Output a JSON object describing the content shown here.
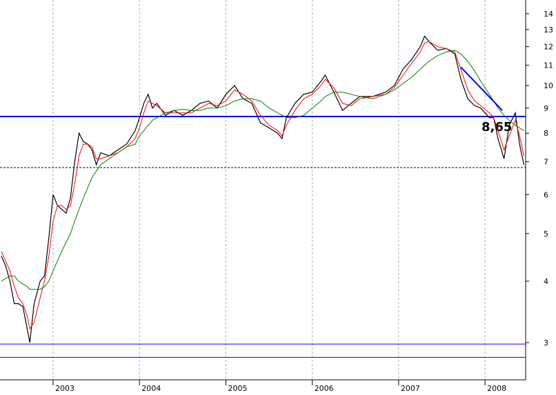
{
  "chart_data": {
    "type": "line",
    "log_scale": true,
    "grid": true,
    "x": [
      2002.4,
      2002.45,
      2002.5,
      2002.55,
      2002.6,
      2002.65,
      2002.7,
      2002.73,
      2002.78,
      2002.85,
      2002.9,
      2002.95,
      2003.0,
      2003.05,
      2003.1,
      2003.15,
      2003.2,
      2003.25,
      2003.3,
      2003.35,
      2003.4,
      2003.45,
      2003.5,
      2003.55,
      2003.65,
      2003.75,
      2003.85,
      2003.95,
      2004.0,
      2004.05,
      2004.1,
      2004.15,
      2004.2,
      2004.3,
      2004.4,
      2004.5,
      2004.6,
      2004.7,
      2004.8,
      2004.9,
      2005.0,
      2005.1,
      2005.2,
      2005.3,
      2005.4,
      2005.5,
      2005.6,
      2005.65,
      2005.7,
      2005.8,
      2005.9,
      2006.0,
      2006.1,
      2006.15,
      2006.25,
      2006.35,
      2006.45,
      2006.55,
      2006.7,
      2006.85,
      2006.95,
      2007.05,
      2007.15,
      2007.25,
      2007.3,
      2007.35,
      2007.45,
      2007.55,
      2007.65,
      2007.72,
      2007.8,
      2007.88,
      2007.95,
      2008.05,
      2008.1,
      2008.15,
      2008.22,
      2008.28,
      2008.35,
      2008.4,
      2008.45
    ],
    "series": [
      {
        "color": "#000000",
        "values": [
          4.5,
          4.3,
          4.0,
          3.6,
          3.6,
          3.55,
          3.2,
          3.0,
          3.6,
          4.0,
          4.1,
          4.9,
          6.0,
          5.7,
          5.6,
          5.5,
          5.9,
          7.0,
          8.0,
          7.7,
          7.6,
          7.4,
          6.9,
          7.3,
          7.2,
          7.4,
          7.6,
          8.1,
          8.6,
          9.2,
          9.6,
          9.0,
          9.2,
          8.7,
          8.9,
          8.7,
          8.9,
          9.2,
          9.3,
          9.0,
          9.6,
          10.0,
          9.4,
          9.2,
          8.4,
          8.2,
          8.0,
          7.8,
          8.6,
          9.2,
          9.6,
          9.7,
          10.2,
          10.5,
          9.7,
          8.9,
          9.2,
          9.5,
          9.5,
          9.7,
          10.0,
          10.8,
          11.3,
          12.0,
          12.6,
          12.3,
          11.8,
          11.9,
          11.6,
          10.3,
          9.4,
          9.1,
          9.0,
          8.6,
          8.6,
          7.8,
          7.1,
          8.3,
          8.8,
          7.6,
          6.9
        ]
      },
      {
        "color": "#ff0000",
        "values": [
          4.6,
          4.4,
          4.2,
          3.9,
          3.7,
          3.6,
          3.4,
          3.2,
          3.3,
          3.7,
          4.0,
          4.5,
          5.3,
          5.7,
          5.7,
          5.6,
          5.7,
          6.3,
          7.2,
          7.6,
          7.6,
          7.5,
          7.1,
          7.1,
          7.2,
          7.3,
          7.5,
          7.8,
          8.2,
          8.8,
          9.3,
          9.2,
          9.1,
          8.8,
          8.8,
          8.8,
          8.8,
          9.0,
          9.2,
          9.1,
          9.3,
          9.8,
          9.6,
          9.3,
          8.7,
          8.3,
          8.1,
          7.9,
          8.3,
          8.9,
          9.4,
          9.6,
          10.0,
          10.3,
          9.9,
          9.2,
          9.1,
          9.4,
          9.5,
          9.6,
          9.9,
          10.5,
          11.1,
          11.7,
          12.2,
          12.3,
          12.0,
          11.9,
          11.7,
          10.8,
          9.8,
          9.3,
          9.1,
          8.8,
          8.6,
          8.1,
          7.4,
          7.9,
          8.5,
          7.9,
          7.2
        ]
      },
      {
        "color": "#008000",
        "values": [
          4.0,
          4.05,
          4.1,
          4.1,
          4.0,
          3.95,
          3.9,
          3.85,
          3.85,
          3.85,
          3.9,
          4.0,
          4.2,
          4.4,
          4.6,
          4.8,
          5.0,
          5.3,
          5.6,
          5.9,
          6.2,
          6.5,
          6.7,
          6.9,
          7.1,
          7.3,
          7.5,
          7.6,
          7.9,
          8.1,
          8.3,
          8.5,
          8.6,
          8.8,
          8.9,
          8.95,
          8.9,
          8.9,
          9.0,
          9.0,
          9.1,
          9.3,
          9.4,
          9.4,
          9.3,
          9.0,
          8.8,
          8.7,
          8.6,
          8.6,
          8.7,
          9.0,
          9.3,
          9.5,
          9.7,
          9.7,
          9.6,
          9.5,
          9.4,
          9.6,
          9.8,
          10.1,
          10.4,
          10.8,
          11.0,
          11.2,
          11.5,
          11.7,
          11.8,
          11.6,
          11.2,
          10.7,
          10.2,
          9.6,
          9.3,
          9.0,
          8.7,
          8.5,
          8.3,
          8.2,
          8.1
        ]
      }
    ],
    "xlim": [
      2002.385,
      2008.47
    ],
    "xticks": [
      2003,
      2004,
      2005,
      2006,
      2007,
      2008
    ],
    "ylim": [
      2.52,
      14.93
    ],
    "yticks": [
      3,
      4,
      5,
      6,
      7,
      8,
      9,
      10,
      11,
      12,
      13,
      14
    ],
    "hlines": [
      {
        "value": 8.65,
        "color": "#0000ff",
        "width": 2,
        "dashed": false
      },
      {
        "value": 6.81,
        "color": "#000000",
        "width": 1,
        "dashed": true
      },
      {
        "value": 2.98,
        "color": "#0000ff",
        "width": 1,
        "dashed": false
      },
      {
        "value": 2.8,
        "color": "#0000ff",
        "width": 1,
        "dashed": false
      }
    ],
    "trendline": {
      "color": "#0000ff",
      "x": [
        2007.72,
        2008.2
      ],
      "y": [
        10.9,
        8.9
      ]
    },
    "annotation": {
      "text": "8,65",
      "color": "#ff0000"
    }
  }
}
